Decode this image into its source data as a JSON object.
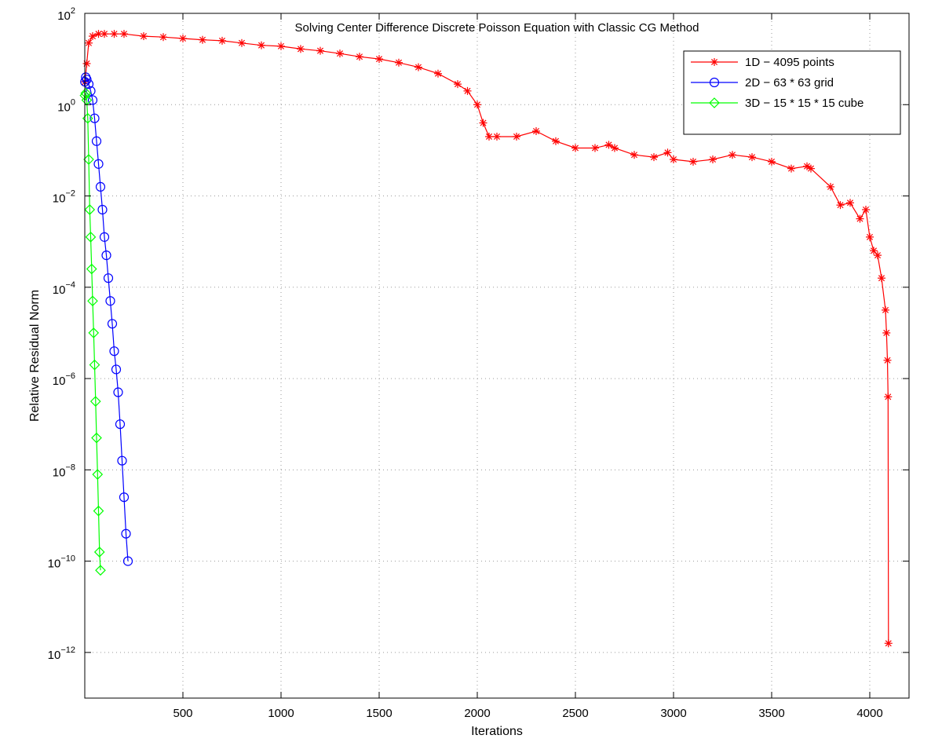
{
  "chart_data": {
    "type": "line",
    "title": "Solving Center Difference Discrete Poisson Equation with Classic CG Method",
    "xlabel": "Iterations",
    "ylabel": "Relative Residual Norm",
    "xlim": [
      0,
      4200
    ],
    "ylim_log10": [
      -13,
      2
    ],
    "yscale": "log",
    "grid": true,
    "legend_position": "top-right",
    "x_ticks": [
      500,
      1000,
      1500,
      2000,
      2500,
      3000,
      3500,
      4000
    ],
    "x_tick_labels": [
      "500",
      "1000",
      "1500",
      "2000",
      "2500",
      "3000",
      "3500",
      "4000"
    ],
    "y_tick_exponents": [
      2,
      0,
      -2,
      -4,
      -6,
      -8,
      -10,
      -12
    ],
    "y_tick_base": "10",
    "y_tick_exp_labels": [
      "2",
      "0",
      "−2",
      "−4",
      "−6",
      "−8",
      "−10",
      "−12"
    ],
    "series": [
      {
        "name": "1D − 4095 points",
        "color": "#ff0000",
        "marker": "asterisk",
        "x": [
          1,
          10,
          20,
          40,
          70,
          100,
          150,
          200,
          300,
          400,
          500,
          600,
          700,
          800,
          900,
          1000,
          1100,
          1200,
          1300,
          1400,
          1500,
          1600,
          1700,
          1800,
          1900,
          1950,
          2000,
          2030,
          2060,
          2100,
          2200,
          2300,
          2400,
          2500,
          2600,
          2670,
          2700,
          2800,
          2900,
          2970,
          3000,
          3100,
          3200,
          3300,
          3400,
          3500,
          3600,
          3680,
          3700,
          3800,
          3850,
          3900,
          3950,
          3980,
          4000,
          4020,
          4040,
          4060,
          4080,
          4085,
          4090,
          4093,
          4095
        ],
        "y_log10": [
          0.5,
          0.9,
          1.35,
          1.5,
          1.55,
          1.55,
          1.55,
          1.55,
          1.5,
          1.48,
          1.45,
          1.42,
          1.4,
          1.35,
          1.3,
          1.28,
          1.22,
          1.18,
          1.12,
          1.05,
          1.0,
          0.92,
          0.82,
          0.68,
          0.45,
          0.3,
          0.0,
          -0.4,
          -0.7,
          -0.7,
          -0.7,
          -0.58,
          -0.8,
          -0.95,
          -0.95,
          -0.88,
          -0.95,
          -1.1,
          -1.15,
          -1.05,
          -1.2,
          -1.25,
          -1.2,
          -1.1,
          -1.15,
          -1.25,
          -1.4,
          -1.35,
          -1.4,
          -1.8,
          -2.2,
          -2.15,
          -2.5,
          -2.3,
          -2.9,
          -3.2,
          -3.3,
          -3.8,
          -4.5,
          -5.0,
          -5.6,
          -6.4,
          -11.8
        ]
      },
      {
        "name": "2D − 63 * 63 grid",
        "color": "#0000ff",
        "marker": "circle",
        "x": [
          1,
          5,
          10,
          20,
          30,
          40,
          50,
          60,
          70,
          80,
          90,
          100,
          110,
          120,
          130,
          140,
          150,
          160,
          170,
          180,
          190,
          200,
          210,
          220
        ],
        "y_log10": [
          0.5,
          0.6,
          0.55,
          0.45,
          0.3,
          0.1,
          -0.3,
          -0.8,
          -1.3,
          -1.8,
          -2.3,
          -2.9,
          -3.3,
          -3.8,
          -4.3,
          -4.8,
          -5.4,
          -5.8,
          -6.3,
          -7.0,
          -7.8,
          -8.6,
          -9.4,
          -10.0
        ]
      },
      {
        "name": "3D − 15 * 15 * 15 cube",
        "color": "#00ff00",
        "marker": "diamond",
        "x": [
          1,
          5,
          10,
          15,
          20,
          25,
          30,
          35,
          40,
          45,
          50,
          55,
          60,
          65,
          70,
          75,
          80
        ],
        "y_log10": [
          0.2,
          0.25,
          0.1,
          -0.3,
          -1.2,
          -2.3,
          -2.9,
          -3.6,
          -4.3,
          -5.0,
          -5.7,
          -6.5,
          -7.3,
          -8.1,
          -8.9,
          -9.8,
          -10.2
        ]
      }
    ]
  }
}
